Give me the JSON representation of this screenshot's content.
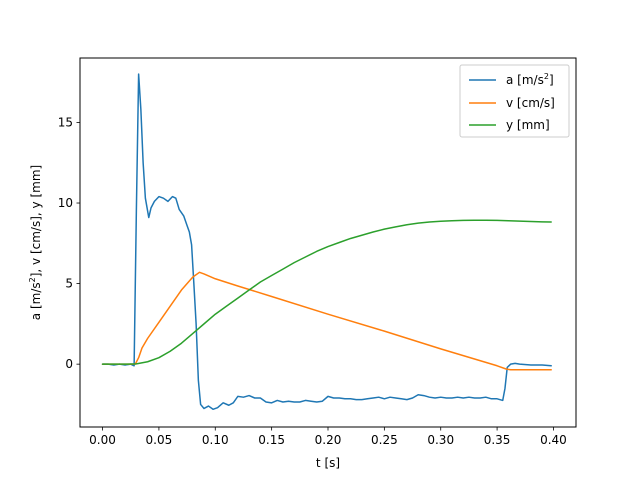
{
  "chart_data": {
    "type": "line",
    "title": "",
    "xlabel": "t [s]",
    "ylabel_parts": [
      "a [m/s",
      "2",
      "], v [cm/s], y [mm]"
    ],
    "xlim": [
      -0.02,
      0.42
    ],
    "ylim": [
      -3.9,
      19.0
    ],
    "xticks": [
      0.0,
      0.05,
      0.1,
      0.15,
      0.2,
      0.25,
      0.3,
      0.35,
      0.4
    ],
    "xtick_labels": [
      "0.00",
      "0.05",
      "0.10",
      "0.15",
      "0.20",
      "0.25",
      "0.30",
      "0.35",
      "0.40"
    ],
    "yticks": [
      0,
      5,
      10,
      15
    ],
    "ytick_labels": [
      "0",
      "5",
      "10",
      "15"
    ],
    "grid": false,
    "legend_position": "top-right",
    "series": [
      {
        "name": "a [m/s2]",
        "label_parts": [
          "a [m/s",
          "2",
          "]"
        ],
        "color": "#1f77b4",
        "points": [
          [
            0.0,
            0.0
          ],
          [
            0.005,
            0.0
          ],
          [
            0.01,
            -0.05
          ],
          [
            0.015,
            0.0
          ],
          [
            0.02,
            -0.05
          ],
          [
            0.025,
            0.0
          ],
          [
            0.028,
            -0.1
          ],
          [
            0.03,
            9.5
          ],
          [
            0.032,
            18.0
          ],
          [
            0.034,
            15.8
          ],
          [
            0.036,
            12.5
          ],
          [
            0.038,
            10.3
          ],
          [
            0.041,
            9.1
          ],
          [
            0.043,
            9.7
          ],
          [
            0.046,
            10.1
          ],
          [
            0.05,
            10.4
          ],
          [
            0.054,
            10.3
          ],
          [
            0.058,
            10.1
          ],
          [
            0.062,
            10.4
          ],
          [
            0.065,
            10.3
          ],
          [
            0.068,
            9.6
          ],
          [
            0.072,
            9.2
          ],
          [
            0.075,
            8.6
          ],
          [
            0.077,
            8.2
          ],
          [
            0.079,
            7.4
          ],
          [
            0.081,
            5.0
          ],
          [
            0.083,
            2.5
          ],
          [
            0.085,
            -1.0
          ],
          [
            0.087,
            -2.5
          ],
          [
            0.09,
            -2.75
          ],
          [
            0.094,
            -2.6
          ],
          [
            0.098,
            -2.8
          ],
          [
            0.102,
            -2.7
          ],
          [
            0.107,
            -2.4
          ],
          [
            0.112,
            -2.55
          ],
          [
            0.116,
            -2.4
          ],
          [
            0.12,
            -2.0
          ],
          [
            0.125,
            -2.05
          ],
          [
            0.13,
            -1.95
          ],
          [
            0.135,
            -2.1
          ],
          [
            0.14,
            -2.1
          ],
          [
            0.145,
            -2.35
          ],
          [
            0.15,
            -2.4
          ],
          [
            0.155,
            -2.25
          ],
          [
            0.16,
            -2.35
          ],
          [
            0.165,
            -2.3
          ],
          [
            0.17,
            -2.35
          ],
          [
            0.175,
            -2.35
          ],
          [
            0.18,
            -2.25
          ],
          [
            0.185,
            -2.3
          ],
          [
            0.19,
            -2.35
          ],
          [
            0.195,
            -2.3
          ],
          [
            0.2,
            -2.0
          ],
          [
            0.205,
            -2.1
          ],
          [
            0.21,
            -2.1
          ],
          [
            0.215,
            -2.15
          ],
          [
            0.22,
            -2.15
          ],
          [
            0.225,
            -2.2
          ],
          [
            0.23,
            -2.2
          ],
          [
            0.235,
            -2.15
          ],
          [
            0.24,
            -2.1
          ],
          [
            0.245,
            -2.05
          ],
          [
            0.25,
            -2.15
          ],
          [
            0.255,
            -2.05
          ],
          [
            0.26,
            -2.1
          ],
          [
            0.265,
            -2.15
          ],
          [
            0.27,
            -2.2
          ],
          [
            0.275,
            -2.1
          ],
          [
            0.28,
            -1.9
          ],
          [
            0.285,
            -1.95
          ],
          [
            0.29,
            -2.05
          ],
          [
            0.295,
            -2.1
          ],
          [
            0.3,
            -2.05
          ],
          [
            0.305,
            -2.1
          ],
          [
            0.31,
            -2.1
          ],
          [
            0.315,
            -2.05
          ],
          [
            0.32,
            -2.1
          ],
          [
            0.325,
            -2.05
          ],
          [
            0.33,
            -2.1
          ],
          [
            0.335,
            -2.1
          ],
          [
            0.34,
            -2.05
          ],
          [
            0.345,
            -2.15
          ],
          [
            0.35,
            -2.15
          ],
          [
            0.355,
            -2.25
          ],
          [
            0.357,
            -1.5
          ],
          [
            0.359,
            -0.2
          ],
          [
            0.362,
            0.0
          ],
          [
            0.366,
            0.05
          ],
          [
            0.37,
            0.0
          ],
          [
            0.38,
            -0.05
          ],
          [
            0.39,
            -0.05
          ],
          [
            0.398,
            -0.1
          ]
        ]
      },
      {
        "name": "v [cm/s]",
        "label_parts": [
          "v [cm/s]"
        ],
        "color": "#ff7f0e",
        "points": [
          [
            0.0,
            0.0
          ],
          [
            0.029,
            0.0
          ],
          [
            0.032,
            0.4
          ],
          [
            0.035,
            1.0
          ],
          [
            0.04,
            1.6
          ],
          [
            0.05,
            2.6
          ],
          [
            0.06,
            3.6
          ],
          [
            0.07,
            4.6
          ],
          [
            0.08,
            5.4
          ],
          [
            0.086,
            5.7
          ],
          [
            0.09,
            5.6
          ],
          [
            0.1,
            5.3
          ],
          [
            0.12,
            4.85
          ],
          [
            0.15,
            4.2
          ],
          [
            0.2,
            3.1
          ],
          [
            0.25,
            2.05
          ],
          [
            0.3,
            0.95
          ],
          [
            0.35,
            -0.1
          ],
          [
            0.358,
            -0.3
          ],
          [
            0.362,
            -0.35
          ],
          [
            0.398,
            -0.35
          ]
        ]
      },
      {
        "name": "y [mm]",
        "label_parts": [
          "y [mm]"
        ],
        "color": "#2ca02c",
        "points": [
          [
            0.0,
            0.0
          ],
          [
            0.02,
            0.0
          ],
          [
            0.03,
            0.02
          ],
          [
            0.04,
            0.15
          ],
          [
            0.05,
            0.4
          ],
          [
            0.06,
            0.8
          ],
          [
            0.07,
            1.3
          ],
          [
            0.08,
            1.9
          ],
          [
            0.09,
            2.5
          ],
          [
            0.1,
            3.1
          ],
          [
            0.11,
            3.6
          ],
          [
            0.12,
            4.1
          ],
          [
            0.13,
            4.6
          ],
          [
            0.14,
            5.1
          ],
          [
            0.15,
            5.5
          ],
          [
            0.16,
            5.9
          ],
          [
            0.17,
            6.3
          ],
          [
            0.18,
            6.65
          ],
          [
            0.19,
            7.0
          ],
          [
            0.2,
            7.3
          ],
          [
            0.21,
            7.55
          ],
          [
            0.22,
            7.8
          ],
          [
            0.23,
            8.0
          ],
          [
            0.24,
            8.2
          ],
          [
            0.25,
            8.38
          ],
          [
            0.26,
            8.52
          ],
          [
            0.27,
            8.65
          ],
          [
            0.28,
            8.75
          ],
          [
            0.29,
            8.82
          ],
          [
            0.3,
            8.87
          ],
          [
            0.31,
            8.9
          ],
          [
            0.32,
            8.92
          ],
          [
            0.33,
            8.93
          ],
          [
            0.34,
            8.93
          ],
          [
            0.35,
            8.92
          ],
          [
            0.36,
            8.9
          ],
          [
            0.37,
            8.88
          ],
          [
            0.38,
            8.85
          ],
          [
            0.39,
            8.83
          ],
          [
            0.398,
            8.82
          ]
        ]
      }
    ]
  }
}
